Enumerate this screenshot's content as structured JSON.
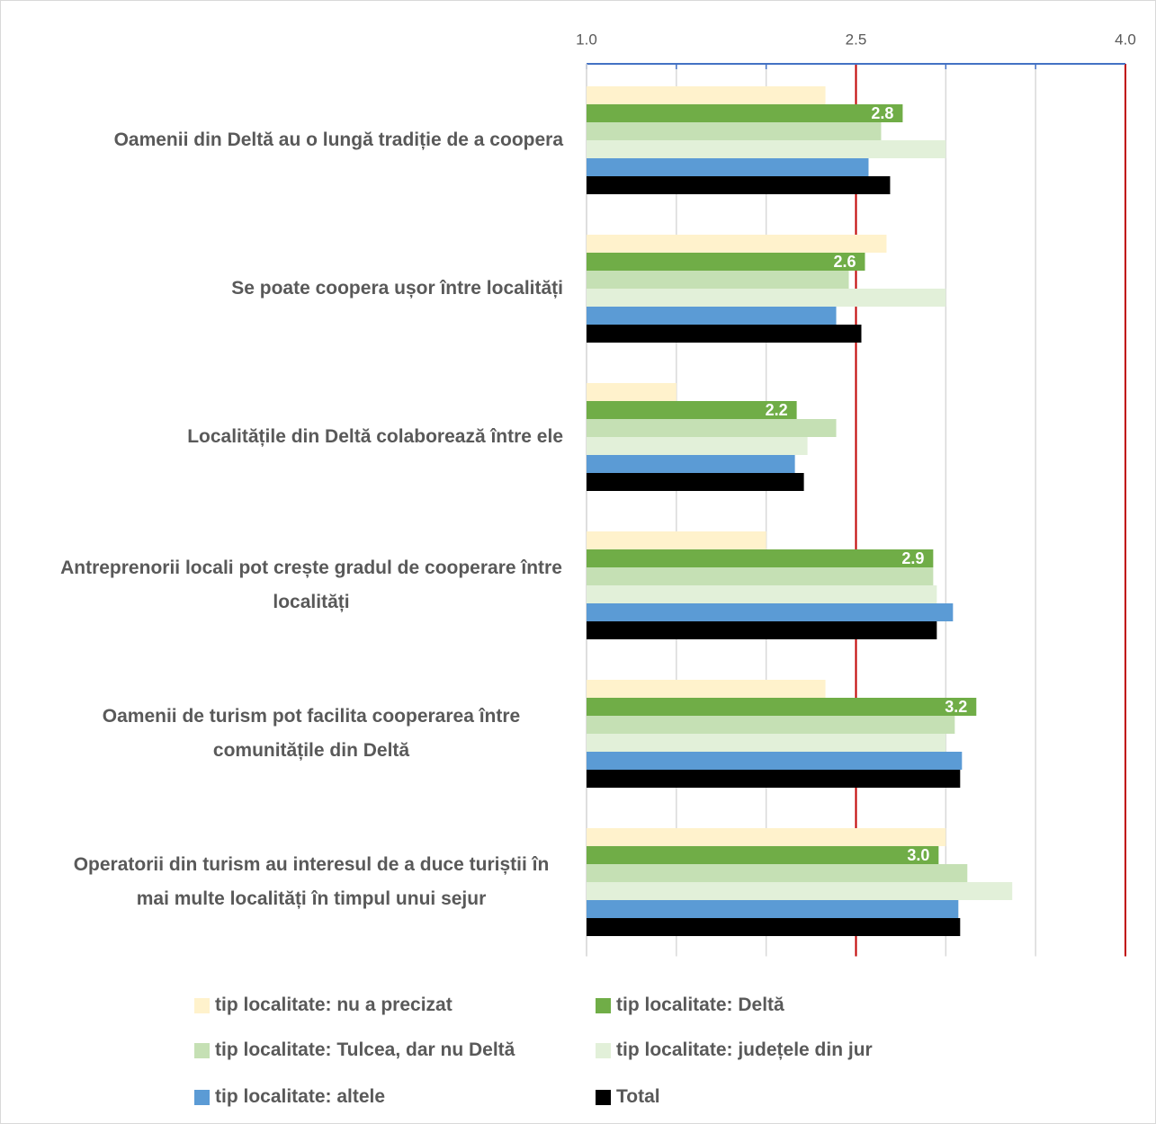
{
  "chart_data": {
    "type": "bar",
    "orientation": "horizontal",
    "categories": [
      "Oamenii din Deltă au o lungă tradiție de a coopera",
      "Se poate coopera ușor între localități",
      "Localitățile din Deltă colaborează între ele",
      "Antreprenorii locali pot crește gradul de cooperare între localități",
      "Oamenii de turism pot facilita cooperarea între comunitățile din Deltă",
      "Operatorii din turism au interesul de a duce turiștii în mai multe localități în timpul unui sejur"
    ],
    "series": [
      {
        "name": "tip localitate: nu a precizat",
        "color": "#fff2cc",
        "values": [
          2.33,
          2.67,
          1.5,
          2.0,
          2.33,
          3.0
        ]
      },
      {
        "name": "tip localitate: Deltă",
        "color": "#70ad47",
        "values": [
          2.76,
          2.55,
          2.17,
          2.93,
          3.17,
          2.96
        ],
        "value_labels": [
          "2.8",
          "2.6",
          "2.2",
          "2.9",
          "3.2",
          "3.0"
        ]
      },
      {
        "name": "tip localitate: Tulcea, dar nu Deltă",
        "color": "#c5e0b4",
        "values": [
          2.64,
          2.46,
          2.39,
          2.93,
          3.05,
          3.12
        ]
      },
      {
        "name": "tip localitate: județele din jur",
        "color": "#e2f0d9",
        "values": [
          3.0,
          3.0,
          2.23,
          2.95,
          3.0,
          3.37
        ]
      },
      {
        "name": "tip localitate: altele",
        "color": "#5b9bd5",
        "values": [
          2.57,
          2.39,
          2.16,
          3.04,
          3.09,
          3.07
        ]
      },
      {
        "name": "Total",
        "color": "#000000",
        "values": [
          2.69,
          2.53,
          2.21,
          2.95,
          3.08,
          3.08
        ]
      }
    ],
    "xlim": [
      1,
      4
    ],
    "xticks": [
      {
        "value": 1,
        "label": "1.0"
      },
      {
        "value": 2.5,
        "label": "2.5"
      },
      {
        "value": 4,
        "label": "4.0"
      }
    ],
    "minor_xticks": [
      1.5,
      2,
      3,
      3.5
    ],
    "reference_lines": {
      "values": [
        2.5,
        4
      ],
      "color": "#c00000"
    },
    "axis_color": "#4472c4",
    "grid": true,
    "legend": "bottom"
  }
}
